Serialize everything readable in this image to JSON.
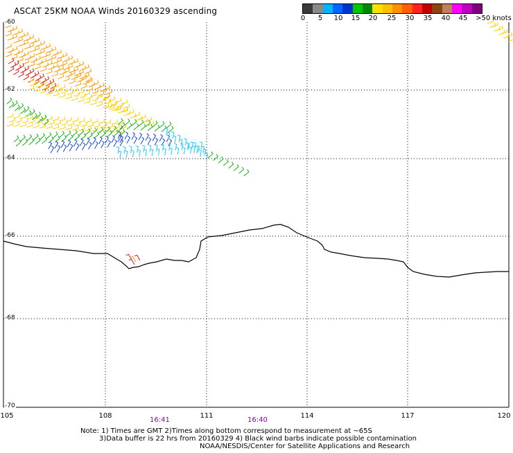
{
  "title": "ASCAT 25KM NOAA Winds 20160329 ascending",
  "colorbar": {
    "colors": [
      "#3a3a3a",
      "#8a8a8a",
      "#00b4ff",
      "#0066ff",
      "#0033cc",
      "#00c800",
      "#008800",
      "#ffe000",
      "#ffc000",
      "#ff9000",
      "#ff6000",
      "#ff2020",
      "#c00000",
      "#8b4513",
      "#c08060",
      "#ff00ff",
      "#c000c0",
      "#800080"
    ],
    "labels": [
      "0",
      "5",
      "10",
      "15",
      "20",
      "25",
      "30",
      "35",
      "40",
      "45",
      ">50 knots"
    ]
  },
  "axes": {
    "lon_ticks": [
      "105",
      "108",
      "111",
      "114",
      "117",
      "120"
    ],
    "lat_ticks": [
      "-60",
      "-62",
      "-64",
      "-66",
      "-68",
      "-70"
    ]
  },
  "time_labels": [
    "16:41",
    "16:40"
  ],
  "notes": {
    "line1": "Note: 1) Times are GMT 2)Times along bottom correspond to measurement at ~65S",
    "line2": "3)Data buffer is 22 hrs from 20160329 4) Black wind barbs indicate possible contamination",
    "line3": "NOAA/NESDIS/Center for Satellite Applications and Research"
  },
  "map_data": {
    "lon_range": [
      105,
      120
    ],
    "lat_range": [
      -70,
      -60
    ],
    "speed_colors": {
      "orange": "#ff9a00",
      "red": "#e01010",
      "yellow": "#ffd000",
      "green": "#10b010",
      "blue": "#1040e0",
      "cyan": "#20c8ff"
    }
  }
}
